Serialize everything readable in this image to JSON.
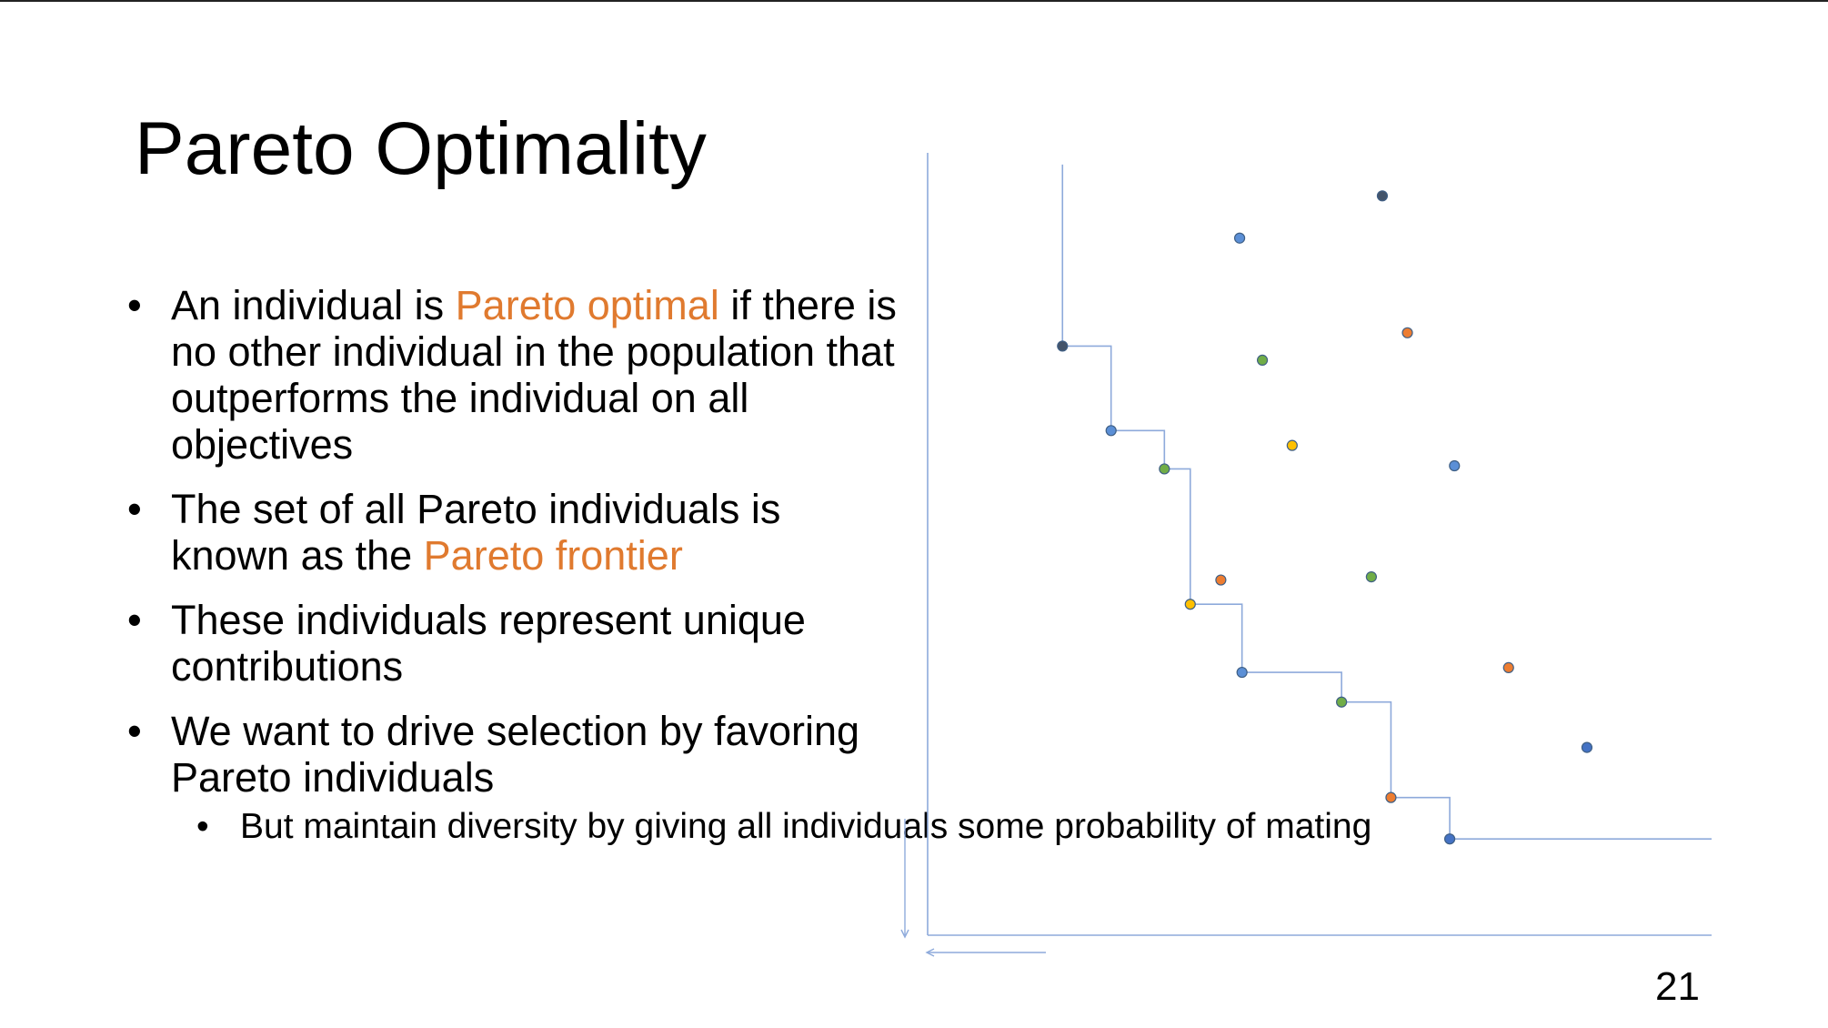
{
  "slide": {
    "title": "Pareto Optimality",
    "page_number": "21",
    "bullets": [
      {
        "before": "An individual is ",
        "highlight": "Pareto optimal",
        "after": " if there is no other individual in the population that outperforms the individual on all objectives"
      },
      {
        "before": "The set of all Pareto individuals is known as the ",
        "highlight": "Pareto frontier",
        "after": ""
      },
      {
        "before": "These individuals represent unique contributions",
        "highlight": "",
        "after": ""
      },
      {
        "before": "We want to drive selection by favoring Pareto individuals",
        "highlight": "",
        "after": ""
      }
    ],
    "sub_bullets": [
      "But maintain diversity by giving all individuals some probability of mating"
    ],
    "bullet_glyph": "•",
    "colors": {
      "highlight": "#e07a2f",
      "axis": "#8eaadb",
      "frontier_line": "#8eaadb"
    }
  },
  "chart_data": {
    "type": "scatter",
    "title": "",
    "xlabel": "",
    "ylabel": "",
    "xlim": [
      0,
      100
    ],
    "ylim": [
      0,
      100
    ],
    "grid": false,
    "frontier": [
      {
        "x": 17.2,
        "y": 75.3
      },
      {
        "x": 23.4,
        "y": 64.5
      },
      {
        "x": 30.2,
        "y": 59.6
      },
      {
        "x": 33.5,
        "y": 42.3
      },
      {
        "x": 40.1,
        "y": 33.6
      },
      {
        "x": 52.8,
        "y": 29.8
      },
      {
        "x": 59.1,
        "y": 17.6
      },
      {
        "x": 66.6,
        "y": 12.3
      }
    ],
    "frontier_end_x": 100,
    "frontier_top_y": 98.5,
    "points": [
      {
        "x": 17.2,
        "y": 75.3,
        "color": "#44546a"
      },
      {
        "x": 23.4,
        "y": 64.5,
        "color": "#5b8fd6"
      },
      {
        "x": 30.2,
        "y": 59.6,
        "color": "#70ad47"
      },
      {
        "x": 33.5,
        "y": 42.3,
        "color": "#ffc000"
      },
      {
        "x": 40.1,
        "y": 33.6,
        "color": "#5b8fd6"
      },
      {
        "x": 52.8,
        "y": 29.8,
        "color": "#70ad47"
      },
      {
        "x": 59.1,
        "y": 17.6,
        "color": "#ed7d31"
      },
      {
        "x": 66.6,
        "y": 12.3,
        "color": "#4472c4"
      },
      {
        "x": 58.0,
        "y": 94.5,
        "color": "#44546a"
      },
      {
        "x": 39.8,
        "y": 89.1,
        "color": "#5b8fd6"
      },
      {
        "x": 61.2,
        "y": 77.0,
        "color": "#ed7d31"
      },
      {
        "x": 42.7,
        "y": 73.5,
        "color": "#70ad47"
      },
      {
        "x": 46.5,
        "y": 62.6,
        "color": "#ffc000"
      },
      {
        "x": 67.2,
        "y": 60.0,
        "color": "#5b8fd6"
      },
      {
        "x": 37.4,
        "y": 45.4,
        "color": "#ed7d31"
      },
      {
        "x": 56.6,
        "y": 45.8,
        "color": "#70ad47"
      },
      {
        "x": 74.1,
        "y": 34.2,
        "color": "#ed7d31"
      },
      {
        "x": 84.1,
        "y": 24.0,
        "color": "#4472c4"
      }
    ]
  }
}
